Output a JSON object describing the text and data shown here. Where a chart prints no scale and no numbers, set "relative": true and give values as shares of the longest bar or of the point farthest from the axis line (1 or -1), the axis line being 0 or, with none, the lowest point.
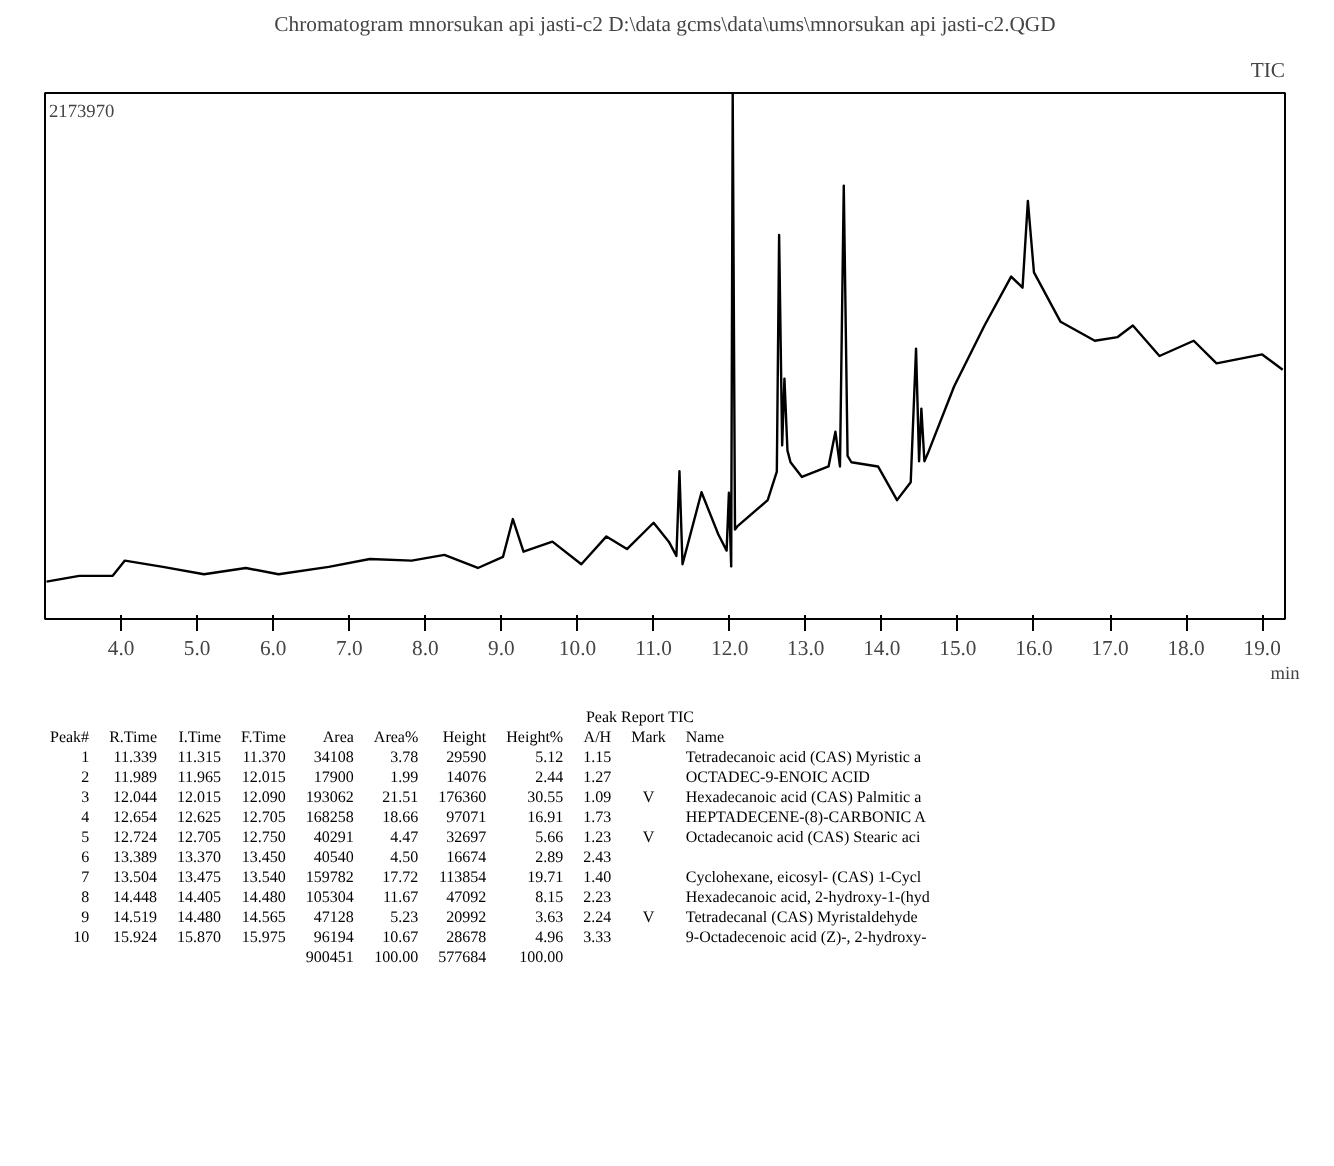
{
  "chart_data": {
    "type": "line",
    "title": "Chromatogram mnorsukan api jasti-c2 D:\\data gcms\\data\\ums\\mnorsukan api jasti-c2.QGD",
    "xlabel": "min",
    "relative": true,
    "color": "#000000",
    "grid": false,
    "tick_labels": "x",
    "xlim": [
      3.0,
      19.3
    ],
    "xticks": [
      {
        "value": 4,
        "label": "4.0"
      },
      {
        "value": 5,
        "label": "5.0"
      },
      {
        "value": 6,
        "label": "6.0"
      },
      {
        "value": 7,
        "label": "7.0"
      },
      {
        "value": 8,
        "label": "8.0"
      },
      {
        "value": 9,
        "label": "9.0"
      },
      {
        "value": 10,
        "label": "10.0"
      },
      {
        "value": 11,
        "label": "11.0"
      },
      {
        "value": 12,
        "label": "12.0"
      },
      {
        "value": 13,
        "label": "13.0"
      },
      {
        "value": 14,
        "label": "14.0"
      },
      {
        "value": 15,
        "label": "15.0"
      },
      {
        "value": 16,
        "label": "16.0"
      },
      {
        "value": 17,
        "label": "17.0"
      },
      {
        "value": 18,
        "label": "18.0"
      },
      {
        "value": 19,
        "label": "19.0"
      }
    ],
    "x": [
      3.02,
      3.45,
      3.89,
      4.05,
      4.55,
      5.09,
      5.64,
      6.07,
      6.73,
      7.27,
      7.82,
      8.25,
      8.69,
      9.02,
      9.15,
      9.29,
      9.67,
      10.05,
      10.38,
      10.65,
      11.0,
      11.2,
      11.3,
      11.34,
      11.38,
      11.63,
      11.85,
      11.96,
      11.99,
      12.02,
      12.04,
      12.07,
      12.1,
      12.5,
      12.62,
      12.65,
      12.69,
      12.72,
      12.76,
      12.8,
      12.95,
      13.3,
      13.39,
      13.45,
      13.5,
      13.55,
      13.6,
      13.95,
      14.2,
      14.38,
      14.45,
      14.49,
      14.52,
      14.56,
      14.6,
      14.95,
      15.35,
      15.7,
      15.85,
      15.92,
      16.0,
      16.35,
      16.8,
      17.1,
      17.3,
      17.65,
      18.1,
      18.4,
      19.0,
      19.27
    ],
    "values": [
      0.071,
      0.082,
      0.082,
      0.111,
      0.099,
      0.085,
      0.097,
      0.085,
      0.099,
      0.114,
      0.111,
      0.122,
      0.097,
      0.118,
      0.19,
      0.128,
      0.147,
      0.104,
      0.157,
      0.133,
      0.183,
      0.147,
      0.12,
      0.281,
      0.104,
      0.241,
      0.161,
      0.13,
      0.24,
      0.1,
      1.0,
      0.17,
      0.176,
      0.226,
      0.28,
      0.73,
      0.33,
      0.457,
      0.32,
      0.298,
      0.27,
      0.29,
      0.356,
      0.29,
      0.824,
      0.31,
      0.298,
      0.29,
      0.226,
      0.26,
      0.514,
      0.3,
      0.4,
      0.3,
      0.313,
      0.442,
      0.558,
      0.651,
      0.63,
      0.795,
      0.659,
      0.565,
      0.529,
      0.536,
      0.558,
      0.5,
      0.529,
      0.486,
      0.503,
      0.474
    ],
    "annotations": [
      "TIC",
      "2173970",
      "Peak Report TIC",
      "Peak#\tR.Time\tI.Time\tF.Time\tArea\tArea%\tHeight\tHeight%\tA/H\tMark\tName",
      "1\t11.339\t11.315\t11.370\t34108\t3.78\t29590\t5.12\t1.15\t\tTetradecanoic acid (CAS) Myristic a",
      "2\t11.989\t11.965\t12.015\t17900\t1.99\t14076\t2.44\t1.27\t\tOCTADEC-9-ENOIC ACID",
      "3\t12.044\t12.015\t12.090\t193062\t21.51\t176360\t30.55\t1.09\tV\tHexadecanoic acid (CAS) Palmitic a",
      "4\t12.654\t12.625\t12.705\t168258\t18.66\t97071\t16.91\t1.73\t\tHEPTADECENE-(8)-CARBONIC A",
      "5\t12.724\t12.705\t12.750\t40291\t4.47\t32697\t5.66\t1.23\tV\tOctadecanoic acid (CAS) Stearic aci",
      "6\t13.389\t13.370\t13.450\t40540\t4.50\t16674\t2.89\t2.43\t\t",
      "7\t13.504\t13.475\t13.540\t159782\t17.72\t113854\t19.71\t1.40\t\tCyclohexane, eicosyl- (CAS) 1-Cycl",
      "8\t14.448\t14.405\t14.480\t105304\t11.67\t47092\t8.15\t2.23\t\tHexadecanoic acid, 2-hydroxy-1-(hyd",
      "9\t14.519\t14.480\t14.565\t47128\t5.23\t20992\t3.63\t2.24\tV\tTetradecanal (CAS) Myristaldehyde",
      "10\t15.924\t15.870\t15.975\t96194\t10.67\t28678\t4.96\t3.33\t\t9-Octadecenoic acid (Z)-, 2-hydroxy-",
      "\t\t\t\t900451\t100.00\t577684\t100.00\t\t\t"
    ]
  }
}
